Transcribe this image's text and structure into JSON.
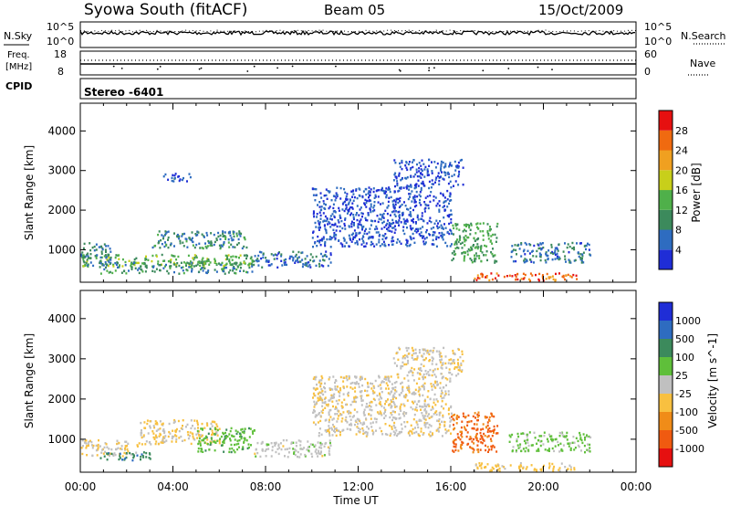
{
  "header": {
    "station": "Syowa South (fitACF)",
    "beam": "Beam 05",
    "date": "15/Oct/2009"
  },
  "noise_panel": {
    "left_label": "N.Sky",
    "right_label": "N.Search",
    "left_ticks": [
      "10^5",
      "10^0"
    ],
    "right_ticks": [
      "10^5",
      "10^0"
    ]
  },
  "freq_panel": {
    "left_label_1": "Freq.",
    "left_label_2": "[MHz]",
    "right_label": "Nave",
    "left_ticks": [
      "18",
      "8"
    ],
    "right_ticks": [
      "60",
      "0"
    ]
  },
  "cpid": {
    "label": "CPID",
    "value": "Stereo -6401"
  },
  "colors": {
    "power": [
      "#1f2dd6",
      "#2e6cc0",
      "#3c8a5c",
      "#4fb04a",
      "#c8cf1a",
      "#f0a020",
      "#f06a10",
      "#e61010"
    ],
    "velocity": [
      "#e61010",
      "#f05a10",
      "#f08c18",
      "#f8c040",
      "#c0c0c0",
      "#5fbf3a",
      "#3c8a5c",
      "#2e6cc0",
      "#1f2dd6"
    ]
  },
  "chart_data": [
    {
      "type": "heatmap",
      "title": "",
      "xlabel": "Time UT",
      "ylabel": "Slant Range [km]",
      "xticks": [
        "00:00",
        "04:00",
        "08:00",
        "12:00",
        "16:00",
        "20:00",
        "00:00"
      ],
      "yticks": [
        "1000",
        "2000",
        "3000",
        "4000"
      ],
      "ylim": [
        180,
        4700
      ],
      "colorbar": {
        "label": "Power [dB]",
        "ticks": [
          "4",
          "8",
          "12",
          "16",
          "20",
          "24",
          "28"
        ],
        "range": [
          0,
          32
        ]
      },
      "regions": [
        {
          "t": [
            0.0,
            7.5
          ],
          "r": [
            600,
            900
          ],
          "v": 14
        },
        {
          "t": [
            0.8,
            7.5
          ],
          "r": [
            420,
            700
          ],
          "v": 10
        },
        {
          "t": [
            0.0,
            1.3
          ],
          "r": [
            600,
            1200
          ],
          "v": 8
        },
        {
          "t": [
            3.0,
            7.2
          ],
          "r": [
            1050,
            1500
          ],
          "v": 9
        },
        {
          "t": [
            7.5,
            10.8
          ],
          "r": [
            580,
            980
          ],
          "v": 6
        },
        {
          "t": [
            16.0,
            18.0
          ],
          "r": [
            700,
            1700
          ],
          "v": 12
        },
        {
          "t": [
            17.0,
            21.5
          ],
          "r": [
            230,
            430
          ],
          "v": 26
        },
        {
          "t": [
            18.5,
            22.0
          ],
          "r": [
            700,
            1200
          ],
          "v": 7
        },
        {
          "t": [
            3.5,
            4.8
          ],
          "r": [
            2750,
            2950
          ],
          "v": 5
        },
        {
          "t": [
            13.5,
            16.5
          ],
          "r": [
            2600,
            3300
          ],
          "v": 4
        },
        {
          "t": [
            10.0,
            16.0
          ],
          "r": [
            1100,
            2600
          ],
          "v": 4
        }
      ]
    },
    {
      "type": "heatmap",
      "title": "",
      "xlabel": "Time UT",
      "ylabel": "Slant Range [km]",
      "xticks": [
        "00:00",
        "04:00",
        "08:00",
        "12:00",
        "16:00",
        "20:00",
        "00:00"
      ],
      "yticks": [
        "1000",
        "2000",
        "3000",
        "4000"
      ],
      "ylim": [
        180,
        4700
      ],
      "colorbar": {
        "label": "Velocity [m s^-1]",
        "ticks": [
          "1000",
          "500",
          "100",
          "25",
          "-25",
          "-100",
          "-500",
          "-1000"
        ],
        "range": [
          -1200,
          1200
        ]
      },
      "regions": [
        {
          "t": [
            0.0,
            2.5
          ],
          "r": [
            600,
            1000
          ],
          "v": -120
        },
        {
          "t": [
            2.5,
            6.0
          ],
          "r": [
            900,
            1500
          ],
          "v": -150
        },
        {
          "t": [
            5.0,
            7.5
          ],
          "r": [
            700,
            1300
          ],
          "v": 300
        },
        {
          "t": [
            0.8,
            3.0
          ],
          "r": [
            500,
            700
          ],
          "v": 600
        },
        {
          "t": [
            7.5,
            10.8
          ],
          "r": [
            580,
            1000
          ],
          "v": 10
        },
        {
          "t": [
            16.0,
            18.0
          ],
          "r": [
            700,
            1700
          ],
          "v": -700
        },
        {
          "t": [
            17.0,
            21.5
          ],
          "r": [
            230,
            430
          ],
          "v": -250
        },
        {
          "t": [
            18.5,
            22.0
          ],
          "r": [
            700,
            1200
          ],
          "v": 200
        },
        {
          "t": [
            13.5,
            16.5
          ],
          "r": [
            2600,
            3300
          ],
          "v": -90
        },
        {
          "t": [
            10.0,
            16.0
          ],
          "r": [
            1100,
            2600
          ],
          "v": -80
        }
      ]
    }
  ]
}
